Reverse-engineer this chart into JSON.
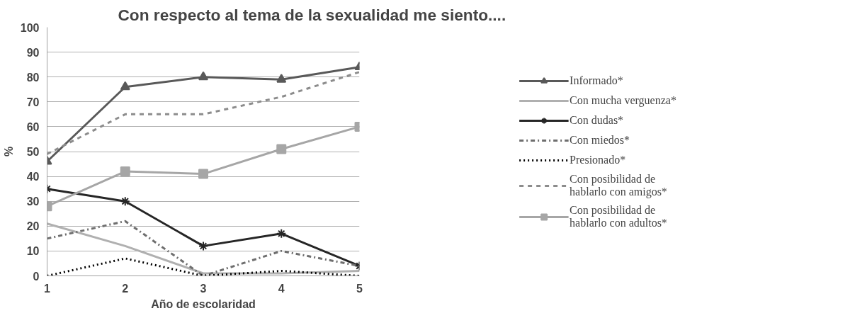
{
  "chart_data": {
    "type": "line",
    "title": "Con respecto al tema de la sexualidad me siento....",
    "xlabel": "Año de escolaridad",
    "ylabel": "%",
    "x": [
      1,
      2,
      3,
      4,
      5
    ],
    "xlim": [
      1,
      5
    ],
    "xticks": [
      1,
      2,
      3,
      4,
      5
    ],
    "ylim": [
      0,
      100
    ],
    "yticks": [
      0,
      10,
      20,
      30,
      40,
      50,
      60,
      70,
      80,
      90,
      100
    ],
    "grid": "y",
    "legend": "right",
    "series": [
      {
        "name": "Informado*",
        "color": "#595959",
        "marker": "triangle",
        "line_style": "solid",
        "values": [
          46,
          76,
          80,
          79,
          84
        ]
      },
      {
        "name": "Con mucha verguenza*",
        "color": "#b0b0b0",
        "marker": "none",
        "line_style": "solid",
        "values": [
          21,
          12,
          1,
          1,
          2
        ]
      },
      {
        "name": "Con dudas*",
        "color": "#262626",
        "marker": "cross",
        "line_style": "solid",
        "values": [
          35,
          30,
          12,
          17,
          4
        ]
      },
      {
        "name": "Con miedos*",
        "color": "#6e6e6e",
        "marker": "none",
        "line_style": "dashdot",
        "values": [
          15,
          22,
          0,
          10,
          4
        ]
      },
      {
        "name": "Presionado*",
        "color": "#000000",
        "marker": "none",
        "line_style": "dotted",
        "values": [
          0,
          7,
          0,
          2,
          0
        ]
      },
      {
        "name": "Con posibilidad de\nhablarlo con amigos*",
        "color": "#8c8c8c",
        "marker": "none",
        "line_style": "dashed",
        "values": [
          49,
          65,
          65,
          72,
          82
        ]
      },
      {
        "name": "Con posibilidad de\nhablarlo con adultos*",
        "color": "#a6a6a6",
        "marker": "square",
        "line_style": "solid",
        "values": [
          28,
          42,
          41,
          51,
          60
        ]
      }
    ]
  }
}
